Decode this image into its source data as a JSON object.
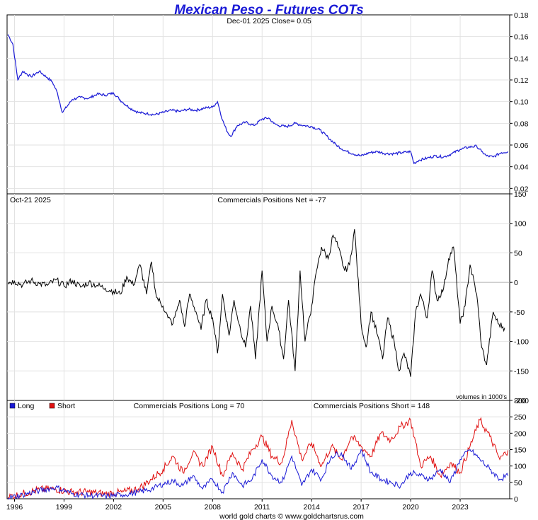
{
  "title": "Mexican Peso - Futures COTs",
  "footer": "world gold charts © www.goldchartsrus.com",
  "x_axis": {
    "start": 1995.55,
    "end": 2026.0,
    "years": [
      "1996",
      "1999",
      "2002",
      "2005",
      "2008",
      "2011",
      "2014",
      "2017",
      "2020",
      "2023"
    ]
  },
  "panels": {
    "price": {
      "header": "Dec-01  2025   Close= 0.05",
      "ylim": [
        0.015,
        0.18
      ],
      "ticks": [
        "0.02",
        "0.04",
        "0.06",
        "0.08",
        "0.10",
        "0.12",
        "0.14",
        "0.16",
        "0.18"
      ],
      "color": "#1a1ad6"
    },
    "net": {
      "date_label": "Oct-21  2025",
      "header": "Commercials Positions Net = -77",
      "volume_note": "volumes in 1000's",
      "ylim": [
        -200,
        150
      ],
      "ticks": [
        "-200",
        "-150",
        "-100",
        "-50",
        "0",
        "50",
        "100",
        "150"
      ],
      "color": "#000000"
    },
    "longshort": {
      "legend_long": "Long",
      "legend_short": "Short",
      "header_long": "Commercials Positions Long = 70",
      "header_short": "Commercials Positions Short = 148",
      "ylim": [
        0,
        300
      ],
      "ticks": [
        "0",
        "50",
        "100",
        "150",
        "200",
        "250",
        "300"
      ],
      "long_color": "#1a1ad6",
      "short_color": "#e01010"
    }
  },
  "chart_data": [
    {
      "type": "line",
      "title": "Mexican Peso - Futures COTs",
      "subtitle": "Dec-01  2025   Close= 0.05",
      "ylim": [
        0.015,
        0.18
      ],
      "x": [
        1995.6,
        1995.9,
        1996.2,
        1996.5,
        1997.0,
        1997.5,
        1998.0,
        1998.3,
        1998.6,
        1998.9,
        1999.5,
        2000.0,
        2000.5,
        2001.0,
        2001.5,
        2002.0,
        2002.5,
        2003.0,
        2003.5,
        2004.0,
        2004.5,
        2005.0,
        2005.5,
        2006.0,
        2006.5,
        2007.0,
        2007.5,
        2008.0,
        2008.3,
        2008.6,
        2008.9,
        2009.1,
        2009.5,
        2010.0,
        2010.5,
        2011.0,
        2011.4,
        2011.7,
        2012.0,
        2012.5,
        2013.0,
        2013.5,
        2014.0,
        2014.5,
        2015.0,
        2015.5,
        2016.0,
        2016.5,
        2017.0,
        2017.5,
        2018.0,
        2018.5,
        2019.0,
        2019.5,
        2020.0,
        2020.2,
        2020.5,
        2021.0,
        2021.5,
        2022.0,
        2022.5,
        2023.0,
        2023.5,
        2024.0,
        2024.3,
        2024.6,
        2025.0,
        2025.5,
        2025.9
      ],
      "series": [
        {
          "values": [
            0.162,
            0.153,
            0.12,
            0.128,
            0.123,
            0.128,
            0.122,
            0.118,
            0.108,
            0.09,
            0.102,
            0.104,
            0.103,
            0.107,
            0.106,
            0.108,
            0.1,
            0.094,
            0.09,
            0.089,
            0.088,
            0.09,
            0.092,
            0.091,
            0.093,
            0.092,
            0.094,
            0.095,
            0.1,
            0.083,
            0.072,
            0.068,
            0.078,
            0.081,
            0.078,
            0.084,
            0.085,
            0.08,
            0.078,
            0.077,
            0.08,
            0.078,
            0.077,
            0.074,
            0.067,
            0.06,
            0.055,
            0.052,
            0.05,
            0.053,
            0.054,
            0.052,
            0.052,
            0.053,
            0.054,
            0.043,
            0.046,
            0.048,
            0.05,
            0.049,
            0.052,
            0.056,
            0.058,
            0.059,
            0.054,
            0.05,
            0.049,
            0.053,
            0.054
          ]
        }
      ]
    },
    {
      "type": "line",
      "subtitle": "Commercials Positions Net = -77",
      "ylim": [
        -200,
        150
      ],
      "x": [
        1995.6,
        1996.0,
        1996.5,
        1997.0,
        1997.5,
        1998.0,
        1998.5,
        1999.0,
        1999.5,
        2000.0,
        2000.5,
        2001.0,
        2001.5,
        2002.0,
        2002.4,
        2002.8,
        2003.2,
        2003.6,
        2004.0,
        2004.3,
        2004.6,
        2005.0,
        2005.3,
        2005.6,
        2006.0,
        2006.3,
        2006.6,
        2007.0,
        2007.3,
        2007.6,
        2008.0,
        2008.3,
        2008.6,
        2009.0,
        2009.3,
        2009.6,
        2010.0,
        2010.3,
        2010.6,
        2011.0,
        2011.3,
        2011.6,
        2012.0,
        2012.3,
        2012.6,
        2013.0,
        2013.3,
        2013.6,
        2014.0,
        2014.3,
        2014.6,
        2015.0,
        2015.3,
        2015.6,
        2016.0,
        2016.3,
        2016.6,
        2017.0,
        2017.3,
        2017.6,
        2018.0,
        2018.3,
        2018.6,
        2019.0,
        2019.3,
        2019.6,
        2020.0,
        2020.3,
        2020.6,
        2021.0,
        2021.3,
        2021.6,
        2022.0,
        2022.3,
        2022.6,
        2023.0,
        2023.3,
        2023.6,
        2024.0,
        2024.3,
        2024.6,
        2025.0,
        2025.3,
        2025.7
      ],
      "series": [
        {
          "values": [
            0,
            2,
            -4,
            3,
            -2,
            -5,
            4,
            -6,
            3,
            -8,
            0,
            -5,
            -10,
            -15,
            -20,
            10,
            -5,
            30,
            -20,
            35,
            -25,
            -40,
            -60,
            -70,
            -30,
            -75,
            -20,
            -50,
            -80,
            -30,
            -60,
            -120,
            -20,
            -90,
            -30,
            -70,
            -110,
            -40,
            -130,
            20,
            -100,
            -40,
            -80,
            -130,
            -30,
            -150,
            20,
            -100,
            -40,
            20,
            60,
            40,
            80,
            60,
            20,
            30,
            90,
            -70,
            -110,
            -50,
            -90,
            -130,
            -60,
            -100,
            -150,
            -120,
            -160,
            -50,
            -20,
            -60,
            20,
            -30,
            -10,
            40,
            60,
            -70,
            -40,
            30,
            -20,
            -110,
            -140,
            -50,
            -70,
            -77
          ]
        }
      ]
    },
    {
      "type": "line",
      "subtitle": "Commercials Positions Long = 70 / Commercials Positions Short = 148",
      "ylim": [
        0,
        300
      ],
      "x": [
        1995.6,
        1996.5,
        1997.5,
        1998.5,
        1999.5,
        2000.5,
        2001.5,
        2002.5,
        2003.5,
        2004.3,
        2005.0,
        2005.6,
        2006.2,
        2006.8,
        2007.4,
        2008.0,
        2008.6,
        2009.2,
        2009.8,
        2010.4,
        2011.0,
        2011.6,
        2012.2,
        2012.8,
        2013.4,
        2014.0,
        2014.6,
        2015.2,
        2015.8,
        2016.4,
        2017.0,
        2017.6,
        2018.2,
        2018.8,
        2019.4,
        2020.0,
        2020.6,
        2021.2,
        2021.8,
        2022.4,
        2023.0,
        2023.6,
        2024.2,
        2024.8,
        2025.4,
        2025.9
      ],
      "series": [
        {
          "name": "Long",
          "values": [
            3,
            12,
            25,
            35,
            15,
            10,
            8,
            12,
            20,
            30,
            45,
            55,
            40,
            70,
            30,
            60,
            20,
            80,
            40,
            60,
            120,
            70,
            50,
            130,
            40,
            90,
            60,
            130,
            140,
            90,
            150,
            80,
            60,
            50,
            40,
            80,
            70,
            60,
            90,
            50,
            120,
            150,
            120,
            90,
            60,
            70
          ]
        },
        {
          "name": "Short",
          "values": [
            5,
            15,
            28,
            30,
            20,
            20,
            15,
            20,
            30,
            60,
            90,
            130,
            80,
            140,
            100,
            160,
            70,
            140,
            90,
            150,
            190,
            130,
            110,
            240,
            120,
            170,
            100,
            160,
            120,
            190,
            160,
            130,
            200,
            180,
            220,
            240,
            100,
            130,
            70,
            110,
            80,
            160,
            240,
            190,
            120,
            148
          ]
        }
      ]
    }
  ]
}
